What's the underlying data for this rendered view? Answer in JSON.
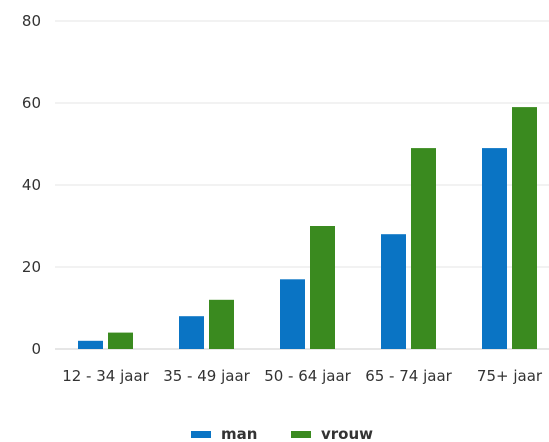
{
  "chart_data": {
    "type": "bar",
    "title": "",
    "xlabel": "",
    "ylabel": "",
    "categories": [
      "12 - 34 jaar",
      "35 - 49 jaar",
      "50 - 64 jaar",
      "65 - 74 jaar",
      "75+ jaar"
    ],
    "series": [
      {
        "name": "man",
        "color": "#0a74c4",
        "values": [
          2,
          8,
          17,
          28,
          49
        ]
      },
      {
        "name": "vrouw",
        "color": "#3a8a1f",
        "values": [
          4,
          12,
          30,
          49,
          59
        ]
      }
    ],
    "ylim": [
      0,
      80
    ],
    "yticks": [
      0,
      20,
      40,
      60,
      80
    ],
    "grid": true,
    "legend": "bottom"
  }
}
